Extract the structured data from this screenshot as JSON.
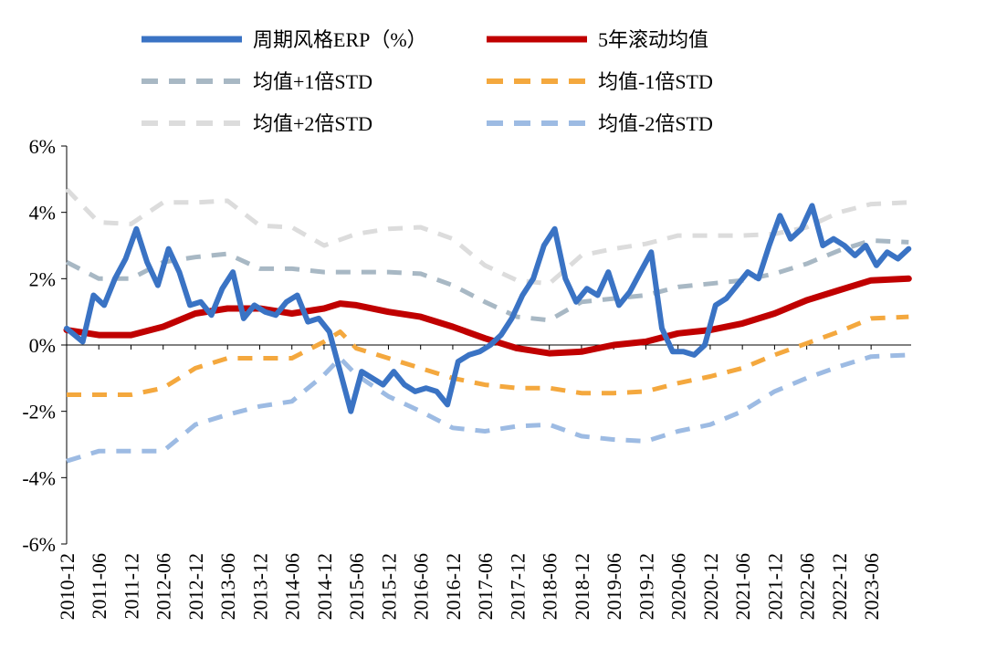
{
  "chart_data": {
    "type": "line",
    "title": "",
    "xlabel": "",
    "ylabel": "",
    "x_range": [
      "2010-12-01",
      "2024-01-15"
    ],
    "ylim": [
      -6,
      6
    ],
    "y_ticks": [
      -6,
      -4,
      -2,
      0,
      2,
      4,
      6
    ],
    "y_tick_labels": [
      "-6%",
      "-4%",
      "-2%",
      "0%",
      "2%",
      "4%",
      "6%"
    ],
    "x_ticks": [
      "2010-12",
      "2011-06",
      "2011-12",
      "2012-06",
      "2012-12",
      "2013-06",
      "2013-12",
      "2014-06",
      "2014-12",
      "2015-06",
      "2015-12",
      "2016-06",
      "2016-12",
      "2017-06",
      "2017-12",
      "2018-06",
      "2018-12",
      "2019-06",
      "2019-12",
      "2020-06",
      "2020-12",
      "2021-06",
      "2021-12",
      "2022-06",
      "2022-12",
      "2023-06"
    ],
    "grid": false,
    "legend_position": "top",
    "series": [
      {
        "name": "周期风格ERP（%）",
        "color": "#3A73C4",
        "style": "solid",
        "x": [
          "2010-12",
          "2011-03",
          "2011-05",
          "2011-07",
          "2011-09",
          "2011-11",
          "2012-01",
          "2012-03",
          "2012-05",
          "2012-07",
          "2012-09",
          "2012-11",
          "2013-01",
          "2013-03",
          "2013-05",
          "2013-07",
          "2013-09",
          "2013-11",
          "2014-01",
          "2014-03",
          "2014-05",
          "2014-07",
          "2014-09",
          "2014-11",
          "2015-01",
          "2015-03",
          "2015-05",
          "2015-07",
          "2015-09",
          "2015-11",
          "2016-01",
          "2016-03",
          "2016-05",
          "2016-07",
          "2016-09",
          "2016-11",
          "2017-01",
          "2017-03",
          "2017-05",
          "2017-07",
          "2017-09",
          "2017-11",
          "2018-01",
          "2018-03",
          "2018-05",
          "2018-07",
          "2018-09",
          "2018-11",
          "2019-01",
          "2019-03",
          "2019-05",
          "2019-07",
          "2019-09",
          "2019-11",
          "2020-01",
          "2020-03",
          "2020-05",
          "2020-07",
          "2020-09",
          "2020-11",
          "2021-01",
          "2021-03",
          "2021-05",
          "2021-07",
          "2021-09",
          "2021-11",
          "2022-01",
          "2022-03",
          "2022-05",
          "2022-07",
          "2022-09",
          "2022-11",
          "2023-01",
          "2023-03",
          "2023-05",
          "2023-07",
          "2023-09",
          "2023-11",
          "2024-01"
        ],
        "values": [
          0.5,
          0.1,
          1.5,
          1.2,
          2.0,
          2.6,
          3.5,
          2.5,
          1.8,
          2.9,
          2.2,
          1.2,
          1.3,
          0.9,
          1.7,
          2.2,
          0.8,
          1.2,
          1.0,
          0.9,
          1.3,
          1.5,
          0.7,
          0.8,
          0.4,
          -0.8,
          -2.0,
          -0.8,
          -1.0,
          -1.2,
          -0.8,
          -1.2,
          -1.4,
          -1.3,
          -1.4,
          -1.8,
          -0.5,
          -0.3,
          -0.2,
          0.0,
          0.3,
          0.8,
          1.5,
          2.0,
          3.0,
          3.5,
          2.0,
          1.3,
          1.7,
          1.5,
          2.2,
          1.2,
          1.6,
          2.2,
          2.8,
          0.5,
          -0.2,
          -0.2,
          -0.3,
          0.0,
          1.2,
          1.4,
          1.8,
          2.2,
          2.0,
          3.0,
          3.9,
          3.2,
          3.5,
          4.2,
          3.0,
          3.2,
          3.0,
          2.7,
          3.0,
          2.4,
          2.8,
          2.6,
          2.9
        ]
      },
      {
        "name": "5年滚动均值",
        "color": "#C00000",
        "style": "solid",
        "x": [
          "2010-12",
          "2011-06",
          "2011-12",
          "2012-06",
          "2012-12",
          "2013-06",
          "2013-12",
          "2014-06",
          "2014-12",
          "2015-03",
          "2015-06",
          "2015-12",
          "2016-06",
          "2016-12",
          "2017-06",
          "2017-12",
          "2018-06",
          "2018-12",
          "2019-06",
          "2019-12",
          "2020-06",
          "2020-12",
          "2021-06",
          "2021-12",
          "2022-06",
          "2022-12",
          "2023-06",
          "2024-01"
        ],
        "values": [
          0.45,
          0.3,
          0.3,
          0.55,
          0.95,
          1.1,
          1.1,
          0.95,
          1.1,
          1.25,
          1.2,
          1.0,
          0.85,
          0.55,
          0.2,
          -0.1,
          -0.25,
          -0.2,
          0.0,
          0.1,
          0.35,
          0.45,
          0.65,
          0.95,
          1.35,
          1.65,
          1.95,
          2.0
        ]
      },
      {
        "name": "均值+1倍STD",
        "color": "#A8B8C4",
        "style": "dashed",
        "x": [
          "2010-12",
          "2011-06",
          "2011-12",
          "2012-06",
          "2012-12",
          "2013-06",
          "2013-12",
          "2014-06",
          "2014-12",
          "2015-06",
          "2015-12",
          "2016-06",
          "2016-12",
          "2017-06",
          "2017-12",
          "2018-06",
          "2018-12",
          "2019-06",
          "2019-12",
          "2020-06",
          "2020-12",
          "2021-06",
          "2021-12",
          "2022-06",
          "2022-12",
          "2023-06",
          "2024-01"
        ],
        "values": [
          2.5,
          2.0,
          2.0,
          2.5,
          2.65,
          2.75,
          2.3,
          2.3,
          2.2,
          2.2,
          2.2,
          2.15,
          1.8,
          1.3,
          0.85,
          0.75,
          1.3,
          1.4,
          1.5,
          1.75,
          1.85,
          1.95,
          2.15,
          2.45,
          2.85,
          3.15,
          3.1
        ]
      },
      {
        "name": "均值-1倍STD",
        "color": "#F4A83E",
        "style": "dashed",
        "x": [
          "2010-12",
          "2011-06",
          "2011-12",
          "2012-06",
          "2012-12",
          "2013-06",
          "2013-12",
          "2014-06",
          "2014-12",
          "2015-03",
          "2015-06",
          "2015-12",
          "2016-06",
          "2016-12",
          "2017-06",
          "2017-12",
          "2018-06",
          "2018-12",
          "2019-06",
          "2019-12",
          "2020-06",
          "2020-12",
          "2021-06",
          "2021-12",
          "2022-06",
          "2022-12",
          "2023-06",
          "2024-01"
        ],
        "values": [
          -1.5,
          -1.5,
          -1.5,
          -1.3,
          -0.7,
          -0.4,
          -0.4,
          -0.4,
          0.1,
          0.4,
          -0.1,
          -0.4,
          -0.7,
          -1.0,
          -1.2,
          -1.3,
          -1.3,
          -1.45,
          -1.45,
          -1.4,
          -1.15,
          -0.95,
          -0.7,
          -0.3,
          0.05,
          0.4,
          0.8,
          0.85
        ]
      },
      {
        "name": "均值+2倍STD",
        "color": "#DCDCDC",
        "style": "dashed",
        "x": [
          "2010-12",
          "2011-06",
          "2011-12",
          "2012-06",
          "2012-12",
          "2013-06",
          "2013-12",
          "2014-06",
          "2014-12",
          "2015-06",
          "2015-12",
          "2016-06",
          "2016-12",
          "2017-06",
          "2017-12",
          "2018-06",
          "2018-12",
          "2019-06",
          "2019-12",
          "2020-06",
          "2020-12",
          "2021-06",
          "2021-12",
          "2022-06",
          "2022-12",
          "2023-06",
          "2024-01"
        ],
        "values": [
          4.7,
          3.7,
          3.65,
          4.3,
          4.3,
          4.35,
          3.6,
          3.55,
          3.0,
          3.35,
          3.5,
          3.55,
          3.2,
          2.4,
          1.95,
          1.85,
          2.7,
          2.9,
          3.05,
          3.3,
          3.3,
          3.3,
          3.35,
          3.55,
          4.0,
          4.25,
          4.3
        ]
      },
      {
        "name": "均值-2倍STD",
        "color": "#9DBBE3",
        "style": "dashed",
        "x": [
          "2010-12",
          "2011-06",
          "2011-12",
          "2012-06",
          "2012-12",
          "2013-06",
          "2013-12",
          "2014-06",
          "2014-12",
          "2015-03",
          "2015-06",
          "2015-12",
          "2016-06",
          "2016-12",
          "2017-06",
          "2017-12",
          "2018-06",
          "2018-12",
          "2019-06",
          "2019-12",
          "2020-06",
          "2020-12",
          "2021-06",
          "2021-12",
          "2022-06",
          "2022-12",
          "2023-06",
          "2024-01"
        ],
        "values": [
          -3.5,
          -3.2,
          -3.2,
          -3.2,
          -2.4,
          -2.1,
          -1.85,
          -1.7,
          -0.9,
          -0.4,
          -0.9,
          -1.55,
          -2.0,
          -2.5,
          -2.6,
          -2.45,
          -2.4,
          -2.75,
          -2.85,
          -2.9,
          -2.6,
          -2.4,
          -2.0,
          -1.4,
          -1.0,
          -0.65,
          -0.35,
          -0.3
        ]
      }
    ]
  }
}
